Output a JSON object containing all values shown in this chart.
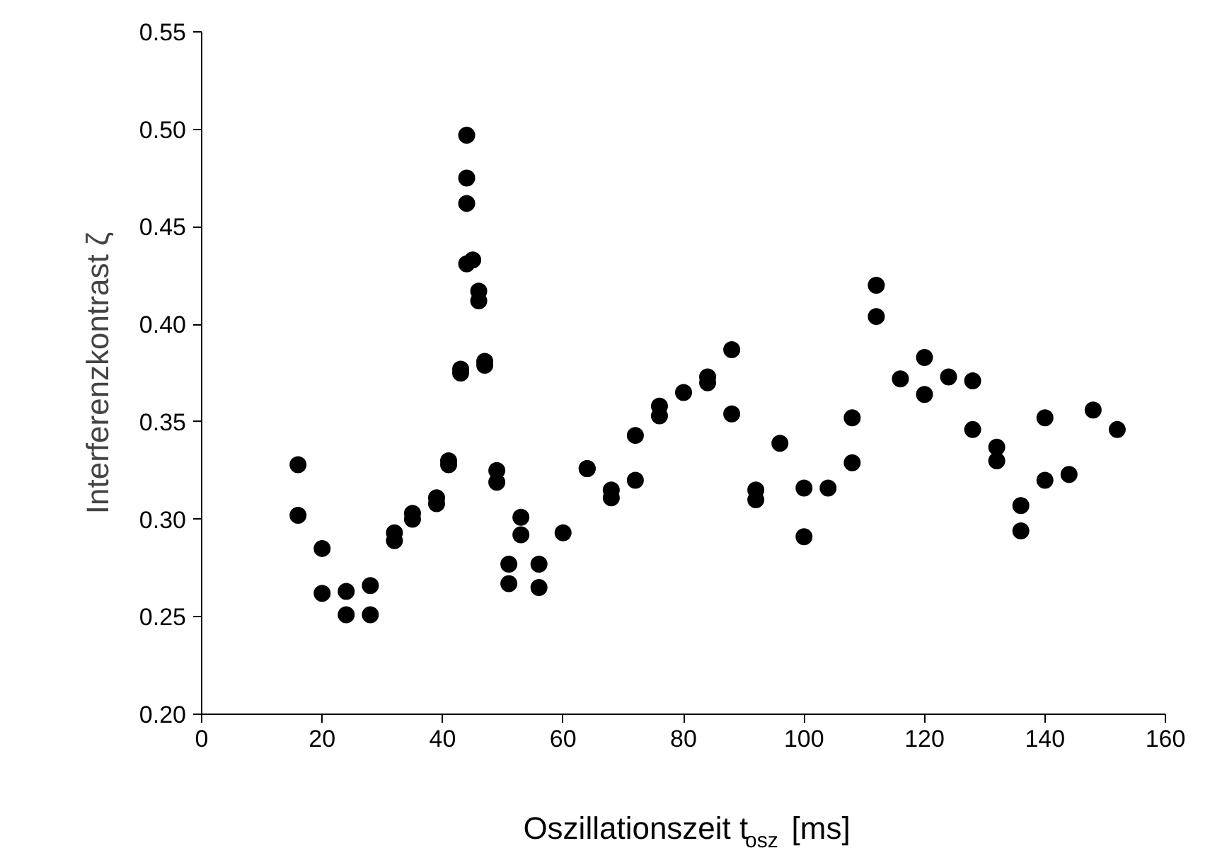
{
  "chart_data": {
    "type": "scatter",
    "xlabel": "Oszillationszeit t$_{osz}$ [ms]",
    "ylabel": "Interferenzkontrast ζ",
    "x": [
      16,
      16,
      20,
      20,
      24,
      24,
      28,
      28,
      32,
      32,
      35,
      35,
      39,
      39,
      41,
      41,
      43,
      43,
      44,
      44,
      44,
      44,
      45,
      46,
      46,
      47,
      47,
      49,
      49,
      51,
      51,
      53,
      53,
      56,
      56,
      60,
      64,
      64,
      68,
      68,
      72,
      72,
      76,
      76,
      80,
      84,
      84,
      88,
      88,
      92,
      92,
      96,
      100,
      100,
      104,
      108,
      108,
      112,
      112,
      116,
      120,
      120,
      124,
      128,
      128,
      132,
      132,
      136,
      136,
      140,
      140,
      144,
      148,
      152
    ],
    "series": [
      {
        "color": "#000000",
        "values": [
          0.328,
          0.302,
          0.285,
          0.262,
          0.263,
          0.251,
          0.266,
          0.251,
          0.293,
          0.289,
          0.303,
          0.3,
          0.311,
          0.308,
          0.33,
          0.328,
          0.377,
          0.375,
          0.497,
          0.475,
          0.462,
          0.431,
          0.433,
          0.417,
          0.412,
          0.381,
          0.379,
          0.325,
          0.319,
          0.277,
          0.267,
          0.301,
          0.292,
          0.277,
          0.265,
          0.293,
          0.326,
          0.326,
          0.315,
          0.311,
          0.343,
          0.32,
          0.358,
          0.353,
          0.365,
          0.373,
          0.37,
          0.387,
          0.354,
          0.315,
          0.31,
          0.339,
          0.316,
          0.291,
          0.316,
          0.352,
          0.329,
          0.42,
          0.404,
          0.372,
          0.383,
          0.364,
          0.373,
          0.371,
          0.346,
          0.337,
          0.33,
          0.307,
          0.294,
          0.352,
          0.32,
          0.323,
          0.356,
          0.346
        ]
      }
    ],
    "xlim": [
      0,
      160
    ],
    "xticks": [
      0,
      20,
      40,
      60,
      80,
      100,
      120,
      140,
      160
    ],
    "ylim": [
      0.2,
      0.55
    ],
    "yticks": [
      {
        "value": 0.2,
        "label": "0.20"
      },
      {
        "value": 0.25,
        "label": "0.25"
      },
      {
        "value": 0.3,
        "label": "0.30"
      },
      {
        "value": 0.35,
        "label": "0.35"
      },
      {
        "value": 0.4,
        "label": "0.40"
      },
      {
        "value": 0.45,
        "label": "0.45"
      },
      {
        "value": 0.5,
        "label": "0.50"
      },
      {
        "value": 0.55,
        "label": "0.55"
      }
    ],
    "grid": false,
    "marker": "circle"
  }
}
